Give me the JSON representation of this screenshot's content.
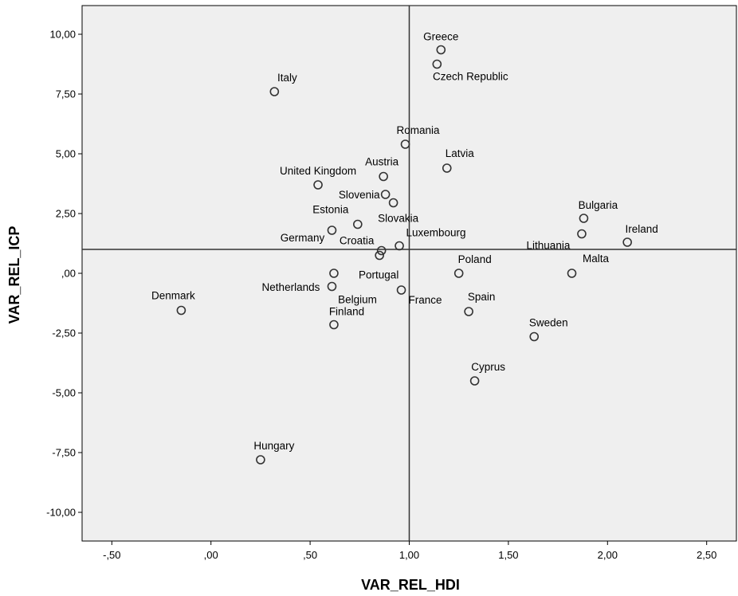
{
  "chart_data": {
    "type": "scatter",
    "xlabel": "VAR_REL_HDI",
    "ylabel": "VAR_REL_ICP",
    "xlim": [
      -0.65,
      2.65
    ],
    "ylim": [
      -11.2,
      11.2
    ],
    "x_ticks": [
      -0.5,
      0.0,
      0.5,
      1.0,
      1.5,
      2.0,
      2.5
    ],
    "x_tick_labels": [
      "-,50",
      ",00",
      ",50",
      "1,00",
      "1,50",
      "2,00",
      "2,50"
    ],
    "y_ticks": [
      10.0,
      7.5,
      5.0,
      2.5,
      0.0,
      -2.5,
      -5.0,
      -7.5,
      -10.0
    ],
    "y_tick_labels": [
      "10,00",
      "7,50",
      "5,00",
      "2,50",
      ",00",
      "-2,50",
      "-5,00",
      "-7,50",
      "-10,00"
    ],
    "reference_lines": {
      "x": 1.0,
      "y": 1.0
    },
    "grid": false,
    "colors": {
      "plot_background": "#efefef",
      "marker": "#333333",
      "axis": "#000000"
    },
    "points": [
      {
        "label": "Greece",
        "x": 1.16,
        "y": 9.35
      },
      {
        "label": "Czech Republic",
        "x": 1.14,
        "y": 8.75
      },
      {
        "label": "Italy",
        "x": 0.32,
        "y": 7.6
      },
      {
        "label": "Romania",
        "x": 0.98,
        "y": 5.4
      },
      {
        "label": "Latvia",
        "x": 1.19,
        "y": 4.4
      },
      {
        "label": "Austria",
        "x": 0.87,
        "y": 4.05
      },
      {
        "label": "United Kingdom",
        "x": 0.54,
        "y": 3.7
      },
      {
        "label": "Slovenia",
        "x": 0.88,
        "y": 3.3
      },
      {
        "label": "Slovakia",
        "x": 0.92,
        "y": 2.95
      },
      {
        "label": "Bulgaria",
        "x": 1.88,
        "y": 2.3
      },
      {
        "label": "Estonia",
        "x": 0.74,
        "y": 2.05
      },
      {
        "label": "Germany",
        "x": 0.61,
        "y": 1.8
      },
      {
        "label": "Lithuania",
        "x": 1.87,
        "y": 1.65
      },
      {
        "label": "Ireland",
        "x": 2.1,
        "y": 1.3
      },
      {
        "label": "Luxembourg",
        "x": 0.95,
        "y": 1.15
      },
      {
        "label": "Croatia",
        "x": 0.86,
        "y": 0.95
      },
      {
        "label": "Portugal",
        "x": 0.85,
        "y": 0.75
      },
      {
        "label": "Poland",
        "x": 1.25,
        "y": 0.0
      },
      {
        "label": "Malta",
        "x": 1.82,
        "y": 0.0
      },
      {
        "label": "Netherlands",
        "x": 0.62,
        "y": 0.0
      },
      {
        "label": "Belgium",
        "x": 0.61,
        "y": -0.55
      },
      {
        "label": "France",
        "x": 0.96,
        "y": -0.7
      },
      {
        "label": "Denmark",
        "x": -0.15,
        "y": -1.55
      },
      {
        "label": "Spain",
        "x": 1.3,
        "y": -1.6
      },
      {
        "label": "Finland",
        "x": 0.62,
        "y": -2.15
      },
      {
        "label": "Sweden",
        "x": 1.63,
        "y": -2.65
      },
      {
        "label": "Cyprus",
        "x": 1.33,
        "y": -4.5
      },
      {
        "label": "Hungary",
        "x": 0.25,
        "y": -7.8
      }
    ]
  }
}
